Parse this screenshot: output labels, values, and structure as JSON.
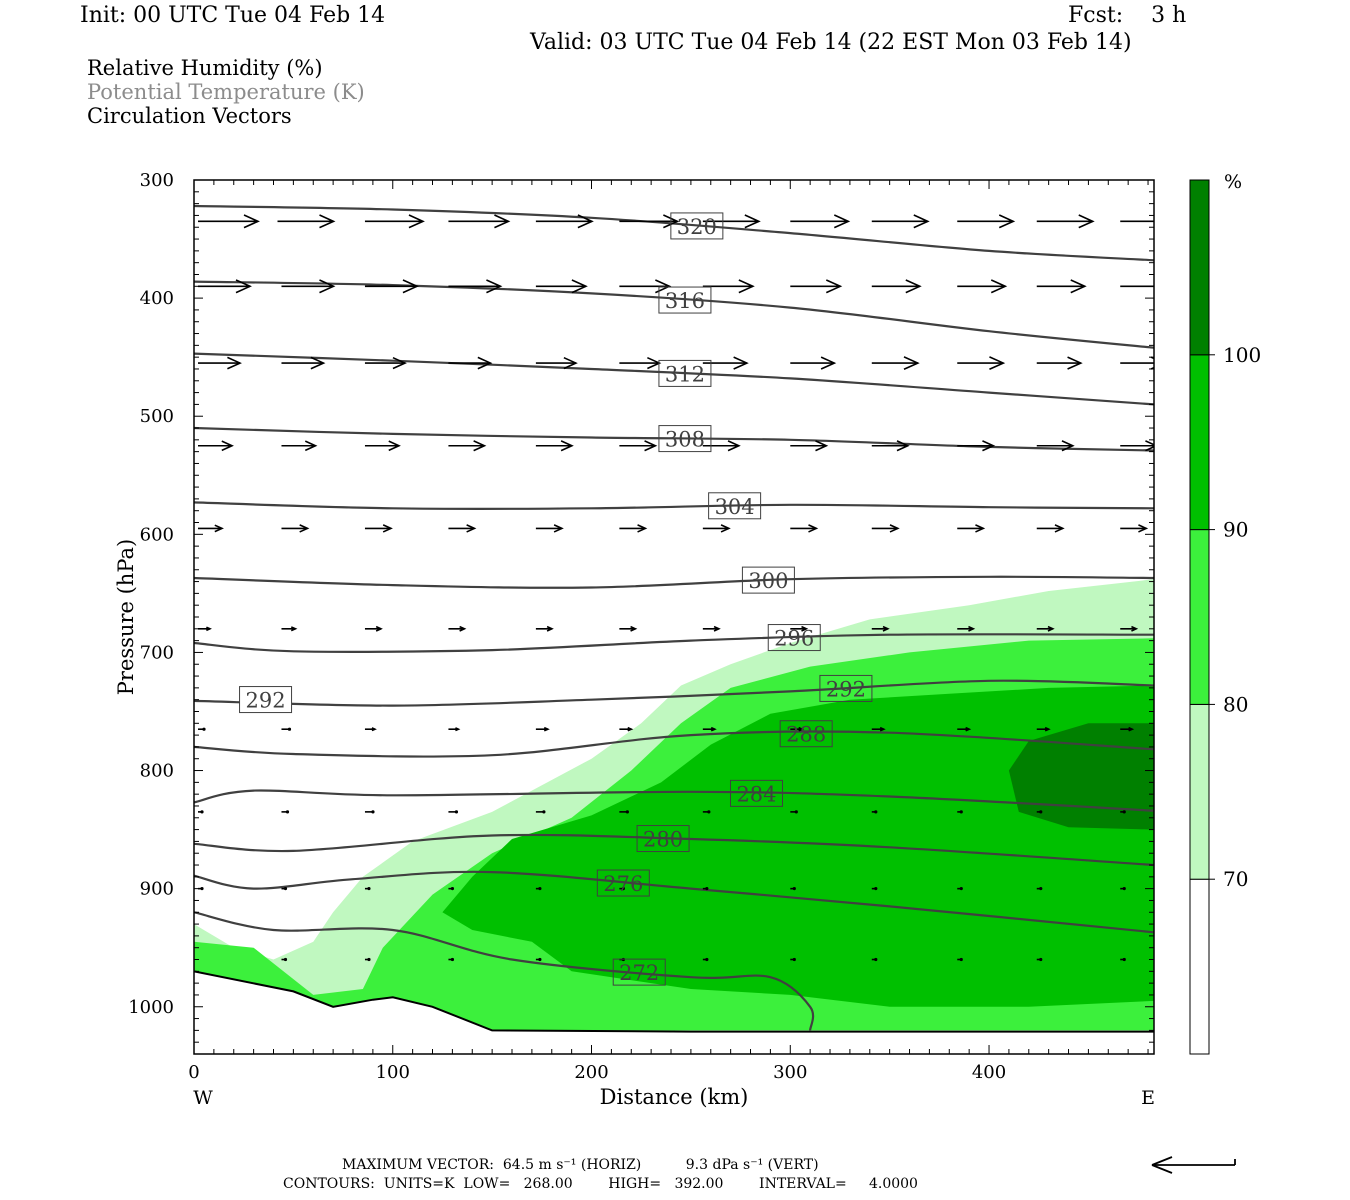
{
  "header": {
    "init": "Init: 00 UTC Tue 04 Feb 14",
    "fcst": "Fcst:    3 h",
    "valid": "Valid: 03 UTC Tue 04 Feb 14 (22 EST Mon 03 Feb 14)"
  },
  "fields": [
    {
      "label": "Relative Humidity (%)",
      "color": "#000000"
    },
    {
      "label": "Potential Temperature (K)",
      "color": "#8c8c8c"
    },
    {
      "label": "Circulation Vectors",
      "color": "#000000"
    }
  ],
  "footer": {
    "max_vector": "MAXIMUM VECTOR:  64.5 m s⁻¹ (HORIZ)          9.3 dPa s⁻¹ (VERT)",
    "contours": "CONTOURS:  UNITS=K  LOW=   268.00        HIGH=   392.00        INTERVAL=     4.0000"
  },
  "chart_data": {
    "type": "cross-section",
    "xlabel": "Distance (km)",
    "ylabel": "Pressure (hPa)",
    "xlim": [
      0,
      483
    ],
    "ylim": [
      1040,
      300
    ],
    "x_ticks": [
      0,
      100,
      200,
      300,
      400
    ],
    "y_ticks": [
      300,
      400,
      500,
      600,
      700,
      800,
      900,
      1000
    ],
    "x_end_labels": {
      "left": "W",
      "right": "E"
    },
    "colorbar": {
      "unit": "%",
      "levels": [
        70,
        80,
        90,
        100
      ],
      "colors": [
        "#ffffff",
        "#c0f8c0",
        "#3cf03c",
        "#00c000",
        "#008000"
      ]
    },
    "isentrope_color": "#404040",
    "isentropes": [
      {
        "label": "320",
        "pts": [
          [
            0,
            322
          ],
          [
            100,
            325
          ],
          [
            200,
            332
          ],
          [
            300,
            345
          ],
          [
            400,
            360
          ],
          [
            483,
            368
          ]
        ]
      },
      {
        "label": "316",
        "pts": [
          [
            0,
            386
          ],
          [
            100,
            389
          ],
          [
            200,
            396
          ],
          [
            300,
            408
          ],
          [
            400,
            428
          ],
          [
            483,
            442
          ]
        ]
      },
      {
        "label": "312",
        "pts": [
          [
            0,
            447
          ],
          [
            100,
            453
          ],
          [
            200,
            460
          ],
          [
            300,
            468
          ],
          [
            400,
            480
          ],
          [
            483,
            490
          ]
        ]
      },
      {
        "label": "308",
        "pts": [
          [
            0,
            510
          ],
          [
            100,
            515
          ],
          [
            200,
            518
          ],
          [
            300,
            520
          ],
          [
            400,
            526
          ],
          [
            483,
            529
          ]
        ]
      },
      {
        "label": "304",
        "pts": [
          [
            0,
            573
          ],
          [
            100,
            578
          ],
          [
            200,
            578
          ],
          [
            300,
            575
          ],
          [
            400,
            577
          ],
          [
            483,
            578
          ]
        ]
      },
      {
        "label": "300",
        "pts": [
          [
            0,
            637
          ],
          [
            100,
            643
          ],
          [
            200,
            645
          ],
          [
            300,
            638
          ],
          [
            400,
            636
          ],
          [
            483,
            637
          ]
        ]
      },
      {
        "label": "296",
        "pts": [
          [
            0,
            692
          ],
          [
            50,
            699
          ],
          [
            150,
            698
          ],
          [
            250,
            690
          ],
          [
            350,
            685
          ],
          [
            483,
            685
          ]
        ]
      },
      {
        "label": "292",
        "pts": [
          [
            0,
            741
          ],
          [
            100,
            745
          ],
          [
            200,
            740
          ],
          [
            300,
            733
          ],
          [
            400,
            724
          ],
          [
            483,
            728
          ]
        ]
      },
      {
        "label": "288",
        "pts": [
          [
            0,
            780
          ],
          [
            50,
            786
          ],
          [
            150,
            787
          ],
          [
            250,
            770
          ],
          [
            350,
            768
          ],
          [
            483,
            782
          ]
        ]
      },
      {
        "label": "284",
        "pts": [
          [
            0,
            827
          ],
          [
            30,
            817
          ],
          [
            100,
            821
          ],
          [
            250,
            818
          ],
          [
            350,
            822
          ],
          [
            483,
            834
          ]
        ]
      },
      {
        "label": "280",
        "pts": [
          [
            0,
            862
          ],
          [
            50,
            868
          ],
          [
            150,
            855
          ],
          [
            250,
            858
          ],
          [
            350,
            865
          ],
          [
            483,
            880
          ]
        ]
      },
      {
        "label": "276",
        "pts": [
          [
            0,
            889
          ],
          [
            30,
            900
          ],
          [
            80,
            892
          ],
          [
            150,
            886
          ],
          [
            250,
            900
          ],
          [
            350,
            915
          ],
          [
            483,
            937
          ]
        ]
      },
      {
        "label": "272",
        "pts": [
          [
            0,
            920
          ],
          [
            40,
            935
          ],
          [
            100,
            935
          ],
          [
            160,
            960
          ],
          [
            250,
            975
          ],
          [
            290,
            975
          ],
          [
            310,
            1000
          ],
          [
            310,
            1020
          ]
        ]
      }
    ],
    "terrain": [
      [
        0,
        970
      ],
      [
        50,
        987
      ],
      [
        70,
        1000
      ],
      [
        90,
        994
      ],
      [
        100,
        992
      ],
      [
        120,
        1000
      ],
      [
        150,
        1020
      ],
      [
        250,
        1021
      ],
      [
        483,
        1021
      ]
    ],
    "vectors": [
      {
        "p": 335,
        "pts": [
          [
            0,
            60
          ],
          [
            40,
            56
          ],
          [
            84,
            58
          ],
          [
            126,
            60
          ],
          [
            170,
            56
          ],
          [
            212,
            58
          ],
          [
            254,
            56
          ],
          [
            298,
            58
          ],
          [
            339,
            56
          ],
          [
            382,
            56
          ],
          [
            422,
            56
          ],
          [
            464,
            56
          ]
        ]
      },
      {
        "p": 390,
        "pts": [
          [
            0,
            52
          ],
          [
            42,
            52
          ],
          [
            84,
            52
          ],
          [
            126,
            52
          ],
          [
            170,
            50
          ],
          [
            212,
            50
          ],
          [
            254,
            50
          ],
          [
            298,
            50
          ],
          [
            339,
            48
          ],
          [
            382,
            48
          ],
          [
            422,
            48
          ],
          [
            464,
            48
          ]
        ]
      },
      {
        "p": 455,
        "pts": [
          [
            0,
            42
          ],
          [
            42,
            42
          ],
          [
            84,
            40
          ],
          [
            126,
            42
          ],
          [
            170,
            40
          ],
          [
            212,
            40
          ],
          [
            254,
            44
          ],
          [
            298,
            44
          ],
          [
            339,
            46
          ],
          [
            382,
            46
          ],
          [
            422,
            44
          ],
          [
            464,
            44
          ]
        ]
      },
      {
        "p": 525,
        "pts": [
          [
            0,
            34
          ],
          [
            42,
            34
          ],
          [
            84,
            34
          ],
          [
            126,
            36
          ],
          [
            170,
            36
          ],
          [
            212,
            36
          ],
          [
            254,
            36
          ],
          [
            298,
            36
          ],
          [
            339,
            36
          ],
          [
            382,
            36
          ],
          [
            422,
            36
          ],
          [
            464,
            36
          ]
        ]
      },
      {
        "p": 595,
        "pts": [
          [
            0,
            24
          ],
          [
            42,
            26
          ],
          [
            84,
            26
          ],
          [
            126,
            26
          ],
          [
            170,
            26
          ],
          [
            212,
            26
          ],
          [
            254,
            26
          ],
          [
            298,
            26
          ],
          [
            339,
            26
          ],
          [
            382,
            26
          ],
          [
            422,
            26
          ],
          [
            464,
            26
          ]
        ]
      },
      {
        "p": 680,
        "pts": [
          [
            0,
            12
          ],
          [
            42,
            14
          ],
          [
            84,
            16
          ],
          [
            126,
            16
          ],
          [
            170,
            16
          ],
          [
            212,
            16
          ],
          [
            254,
            16
          ],
          [
            298,
            16
          ],
          [
            339,
            16
          ],
          [
            382,
            16
          ],
          [
            422,
            16
          ],
          [
            464,
            16
          ]
        ]
      },
      {
        "p": 765,
        "pts": [
          [
            0,
            6
          ],
          [
            42,
            8
          ],
          [
            84,
            10
          ],
          [
            126,
            10
          ],
          [
            170,
            12
          ],
          [
            212,
            12
          ],
          [
            254,
            12
          ],
          [
            298,
            12
          ],
          [
            339,
            12
          ],
          [
            382,
            12
          ],
          [
            422,
            12
          ],
          [
            464,
            12
          ]
        ]
      },
      {
        "p": 835,
        "pts": [
          [
            0,
            4
          ],
          [
            42,
            6
          ],
          [
            84,
            8
          ],
          [
            126,
            8
          ],
          [
            170,
            8
          ],
          [
            212,
            8
          ],
          [
            254,
            6
          ],
          [
            298,
            6
          ],
          [
            339,
            4
          ],
          [
            382,
            4
          ],
          [
            422,
            4
          ],
          [
            464,
            4
          ]
        ]
      },
      {
        "p": 900,
        "pts": [
          [
            0,
            4
          ],
          [
            42,
            4
          ],
          [
            84,
            4
          ],
          [
            126,
            4
          ],
          [
            170,
            4
          ],
          [
            212,
            4
          ],
          [
            254,
            4
          ],
          [
            298,
            4
          ],
          [
            339,
            4
          ],
          [
            382,
            4
          ],
          [
            422,
            4
          ],
          [
            464,
            4
          ]
        ]
      },
      {
        "p": 960,
        "pts": [
          [
            42,
            4
          ],
          [
            84,
            4
          ],
          [
            126,
            4
          ],
          [
            170,
            4
          ],
          [
            212,
            4
          ],
          [
            254,
            4
          ],
          [
            298,
            4
          ],
          [
            339,
            4
          ],
          [
            382,
            4
          ],
          [
            422,
            4
          ],
          [
            464,
            4
          ]
        ]
      }
    ],
    "rh_regions": [
      {
        "level": 70,
        "pts": [
          [
            0,
            930
          ],
          [
            20,
            950
          ],
          [
            40,
            960
          ],
          [
            60,
            945
          ],
          [
            70,
            920
          ],
          [
            85,
            890
          ],
          [
            110,
            860
          ],
          [
            150,
            835
          ],
          [
            200,
            790
          ],
          [
            225,
            760
          ],
          [
            245,
            728
          ],
          [
            270,
            710
          ],
          [
            300,
            692
          ],
          [
            340,
            672
          ],
          [
            390,
            660
          ],
          [
            430,
            648
          ],
          [
            483,
            638
          ],
          [
            483,
            1020
          ],
          [
            150,
            1020
          ],
          [
            120,
            1000
          ],
          [
            100,
            992
          ],
          [
            70,
            1000
          ],
          [
            50,
            987
          ],
          [
            0,
            970
          ]
        ]
      },
      {
        "level": 80,
        "pts": [
          [
            0,
            945
          ],
          [
            30,
            950
          ],
          [
            60,
            990
          ],
          [
            85,
            985
          ],
          [
            95,
            950
          ],
          [
            120,
            905
          ],
          [
            150,
            870
          ],
          [
            190,
            840
          ],
          [
            220,
            800
          ],
          [
            245,
            760
          ],
          [
            270,
            730
          ],
          [
            310,
            712
          ],
          [
            360,
            700
          ],
          [
            420,
            690
          ],
          [
            483,
            688
          ],
          [
            483,
            1020
          ],
          [
            150,
            1020
          ],
          [
            120,
            1000
          ],
          [
            100,
            992
          ],
          [
            70,
            1000
          ],
          [
            50,
            987
          ],
          [
            0,
            970
          ]
        ]
      },
      {
        "level": 90,
        "pts": [
          [
            140,
            890
          ],
          [
            160,
            858
          ],
          [
            200,
            838
          ],
          [
            235,
            810
          ],
          [
            260,
            778
          ],
          [
            290,
            752
          ],
          [
            330,
            740
          ],
          [
            380,
            735
          ],
          [
            430,
            730
          ],
          [
            483,
            728
          ],
          [
            483,
            995
          ],
          [
            420,
            1000
          ],
          [
            350,
            1000
          ],
          [
            300,
            990
          ],
          [
            250,
            985
          ],
          [
            190,
            970
          ],
          [
            170,
            945
          ],
          [
            140,
            935
          ],
          [
            125,
            920
          ]
        ]
      },
      {
        "level": 100,
        "pts": [
          [
            410,
            800
          ],
          [
            420,
            775
          ],
          [
            450,
            760
          ],
          [
            483,
            760
          ],
          [
            483,
            850
          ],
          [
            440,
            848
          ],
          [
            415,
            835
          ]
        ]
      }
    ]
  }
}
